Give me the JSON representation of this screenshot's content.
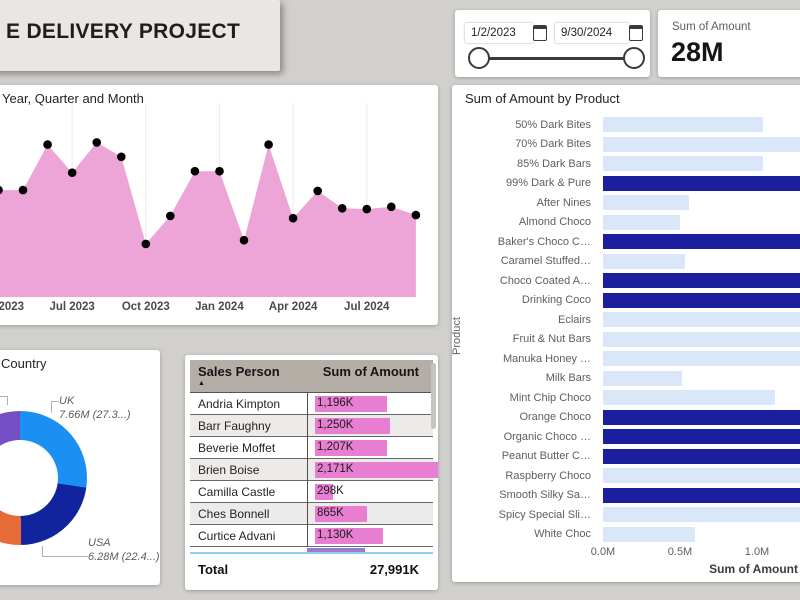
{
  "colors": {
    "page_background": "#d2d0cd",
    "area_fill": "#eda4d6",
    "area_marker": "#000000",
    "table_databar": "#e87ed2",
    "table_header_bg": "#b4aea6",
    "bar_dim": "#d9e7f9",
    "bar_highlight": "#1b1f9e",
    "donut_uk": "#1b8ff2",
    "donut_usa": "#12239e",
    "donut_orange": "#e66c37",
    "donut_purple": "#744ec2"
  },
  "title_banner": {
    "text": "E DELIVERY PROJECT"
  },
  "date_slicer": {
    "start_date": "1/2/2023",
    "end_date": "9/30/2024"
  },
  "kpi_card": {
    "label": "Sum of Amount",
    "value": "28M"
  },
  "chart_data": [
    {
      "type": "area",
      "title": "Year, Quarter and Month",
      "x": [
        "Apr 2023",
        "May 2023",
        "Jun 2023",
        "Jul 2023",
        "Aug 2023",
        "Sep 2023",
        "Oct 2023",
        "Nov 2023",
        "Dec 2023",
        "Jan 2024",
        "Feb 2024",
        "Mar 2024",
        "Apr 2024",
        "May 2024",
        "Jun 2024",
        "Jul 2024",
        "Aug 2024",
        "Sep 2024"
      ],
      "values_m": [
        1.41,
        1.41,
        2.01,
        1.64,
        2.04,
        1.85,
        0.7,
        1.07,
        1.66,
        1.66,
        0.75,
        2.01,
        1.04,
        1.4,
        1.17,
        1.16,
        1.19,
        1.08
      ],
      "x_tick_labels": [
        "2023",
        "Jul 2023",
        "Oct 2023",
        "Jan 2024",
        "Apr 2024",
        "Jul 2024"
      ],
      "x_tick_indices": [
        0,
        3,
        6,
        9,
        12,
        15
      ],
      "ylim": [
        0,
        2.6
      ],
      "legend": "none",
      "grid": "faint-vertical"
    },
    {
      "type": "pie",
      "title": "Country",
      "slices": [
        {
          "label": "UK",
          "value_label": "7.66M (27.3...)",
          "pct": 27.3,
          "color": "#1b8ff2"
        },
        {
          "label": "USA",
          "value_label": "6.28M (22.4...)",
          "pct": 22.4,
          "color": "#12239e"
        },
        {
          "label": "",
          "value_label": "",
          "pct": 15.8,
          "color": "#e66c37"
        },
        {
          "label": "",
          "value_label": "",
          "pct": 11.5,
          "color": "#6b007b"
        },
        {
          "label": "",
          "value_label": "",
          "pct": 10.2,
          "color": "#e044a7"
        },
        {
          "label": "",
          "value_label": "",
          "pct": 12.8,
          "color": "#744ec2"
        }
      ],
      "donut": true
    },
    {
      "type": "bar",
      "title": "Sum of Amount by Product",
      "xlabel": "Sum of Amount",
      "ylabel": "Product",
      "x_ticks": [
        "0.0M",
        "0.5M",
        "1.0M"
      ],
      "xlim": [
        0,
        1.3
      ],
      "categories": [
        "50% Dark Bites",
        "70% Dark Bites",
        "85% Dark Bars",
        "99% Dark & Pure",
        "After Nines",
        "Almond Choco",
        "Baker's Choco C…",
        "Caramel Stuffed…",
        "Choco Coated A…",
        "Drinking Coco",
        "Eclairs",
        "Fruit & Nut Bars",
        "Manuka Honey …",
        "Milk Bars",
        "Mint Chip Choco",
        "Orange Choco",
        "Organic Choco …",
        "Peanut Butter C…",
        "Raspberry Choco",
        "Smooth Silky Sa…",
        "Spicy Special Sli…",
        "White Choc"
      ],
      "values_m": [
        1.04,
        1.35,
        1.04,
        1.4,
        0.56,
        0.5,
        1.4,
        0.53,
        1.4,
        1.4,
        1.35,
        1.35,
        1.35,
        0.51,
        1.12,
        1.4,
        1.4,
        1.4,
        1.35,
        1.4,
        1.35,
        0.6
      ],
      "highlighted": [
        false,
        false,
        false,
        true,
        false,
        false,
        true,
        false,
        true,
        true,
        false,
        false,
        false,
        false,
        false,
        true,
        true,
        true,
        false,
        true,
        false,
        false
      ]
    },
    {
      "type": "table",
      "columns": [
        "Sales Person",
        "Sum of Amount"
      ],
      "sort": "ascending",
      "rows": [
        [
          "Andria Kimpton",
          "1,196K"
        ],
        [
          "Barr Faughny",
          "1,250K"
        ],
        [
          "Beverie Moffet",
          "1,207K"
        ],
        [
          "Brien Boise",
          "2,171K"
        ],
        [
          "Camilla Castle",
          "298K"
        ],
        [
          "Ches Bonnell",
          "865K"
        ],
        [
          "Curtice Advani",
          "1,130K"
        ]
      ],
      "total_label": "Total",
      "total_value": "27,991K"
    }
  ]
}
